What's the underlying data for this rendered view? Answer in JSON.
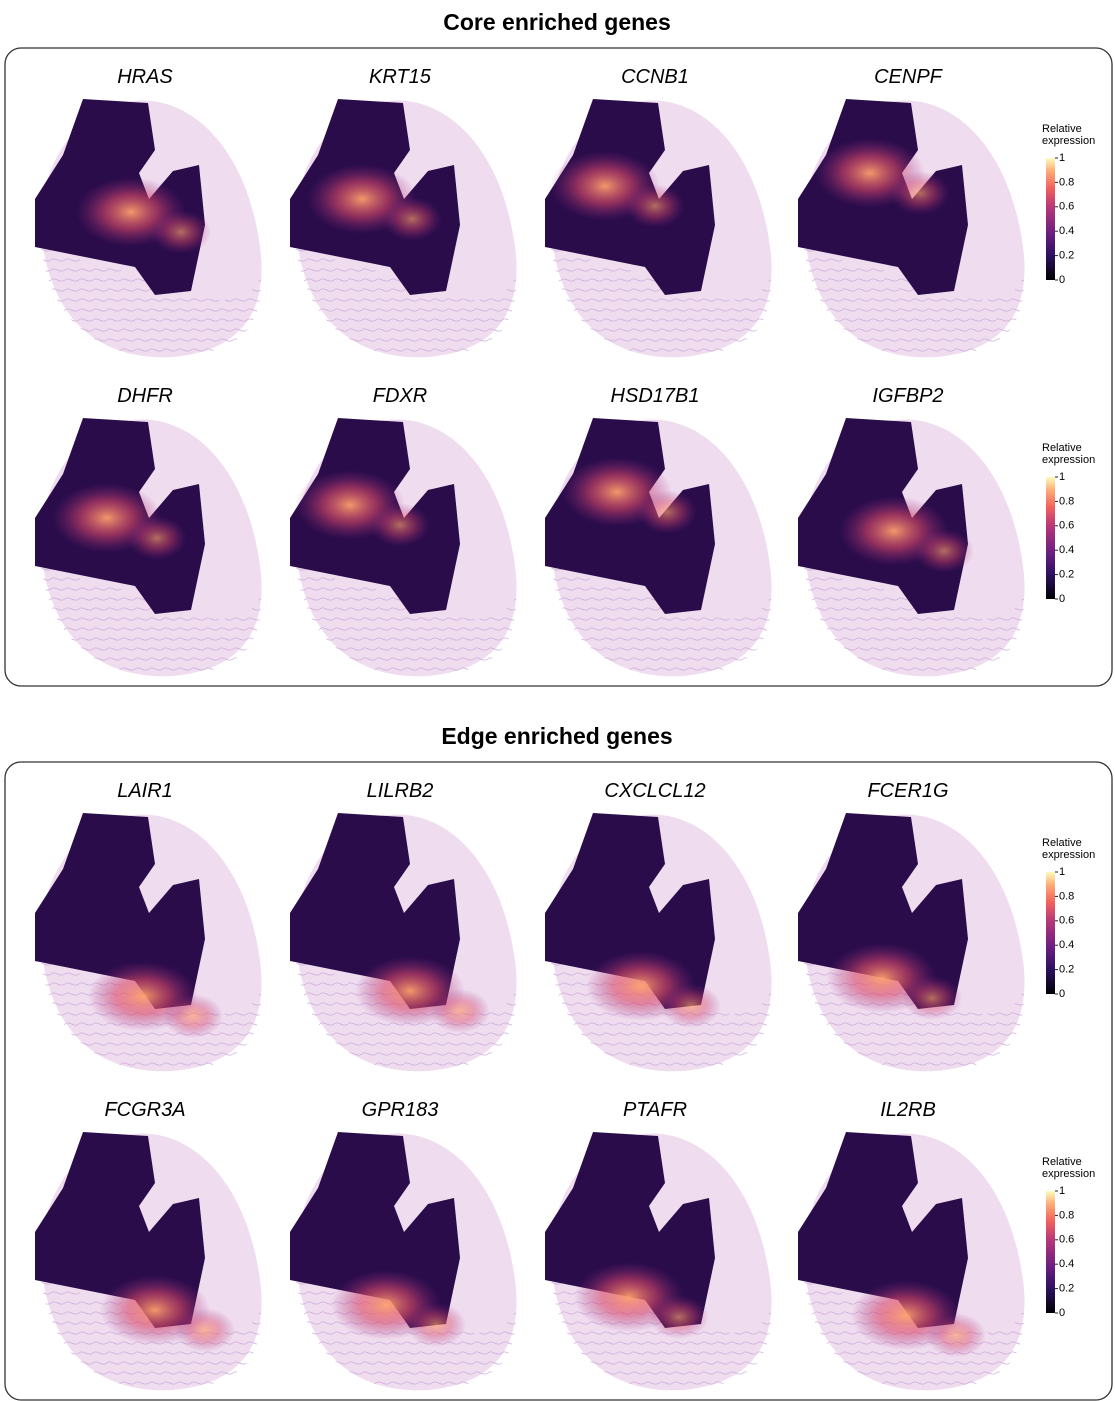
{
  "panels": [
    {
      "title": "Core enriched genes",
      "genes": [
        "HRAS",
        "KRT15",
        "CCNB1",
        "CENPF",
        "DHFR",
        "FDXR",
        "HSD17B1",
        "IGFBP2"
      ],
      "colorbar": {
        "label": "Relative expression",
        "lim": [
          0,
          1
        ],
        "ticks": [
          0,
          0.2,
          0.4,
          0.6,
          0.8,
          1
        ]
      }
    },
    {
      "title": "Edge enriched genes",
      "genes": [
        "LAIR1",
        "LILRB2",
        "CXCLCL12",
        "FCER1G",
        "FCGR3A",
        "GPR183",
        "PTAFR",
        "IL2RB"
      ],
      "colorbar": {
        "label": "Relative expression",
        "lim": [
          0,
          1
        ],
        "ticks": [
          0,
          0.2,
          0.4,
          0.6,
          0.8,
          1
        ]
      }
    }
  ]
}
